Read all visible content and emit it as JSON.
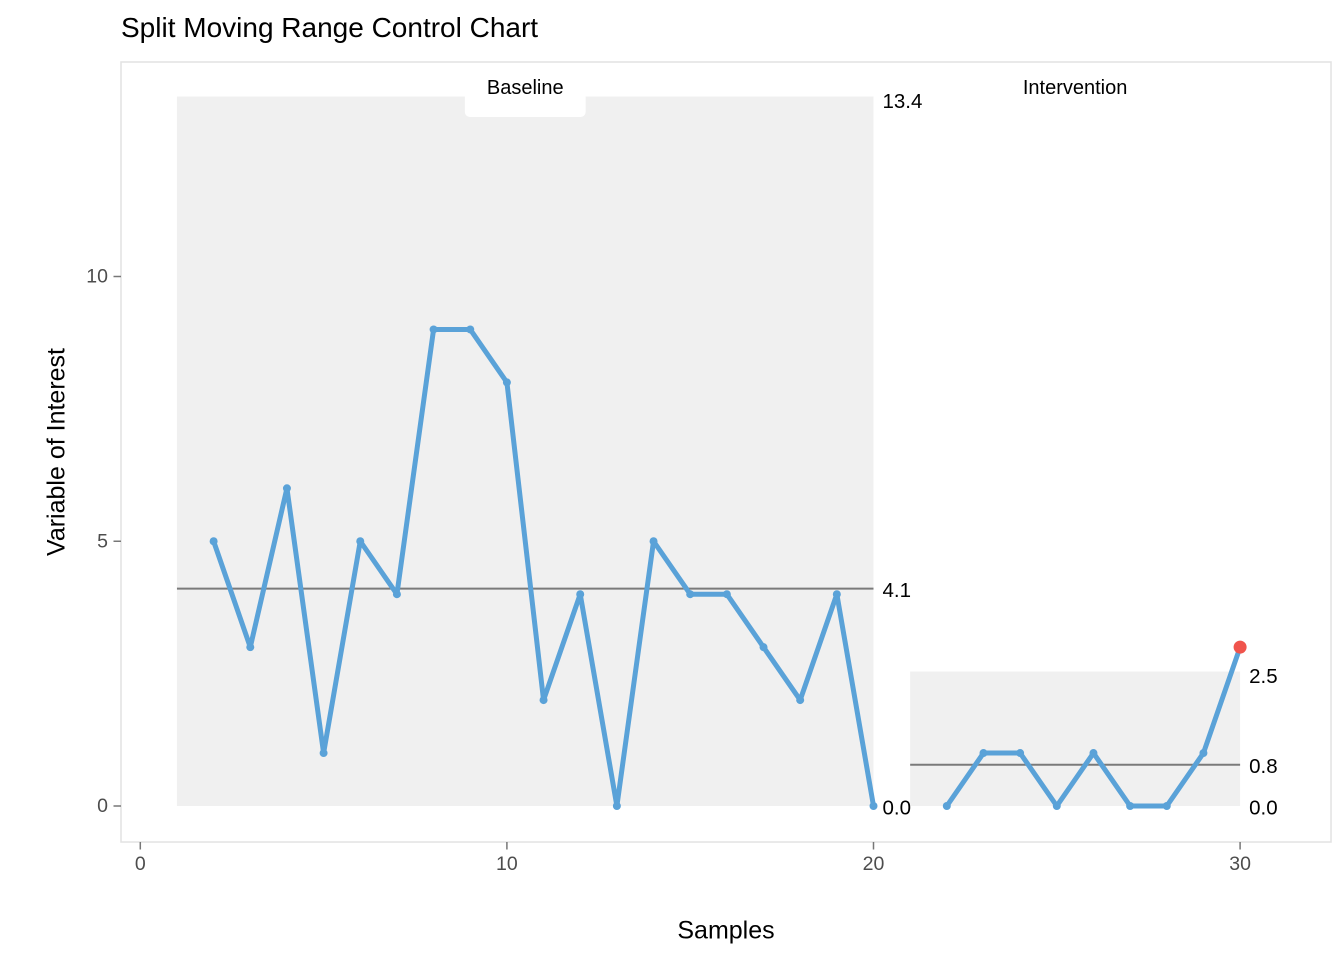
{
  "chart_data": {
    "type": "line",
    "title": "Split Moving Range Control Chart",
    "xlabel": "Samples",
    "ylabel": "Variable of Interest",
    "x_tick_values": [
      0,
      10,
      20,
      30
    ],
    "y_tick_values": [
      0,
      5,
      10
    ],
    "xlim": [
      -0.53,
      32.5
    ],
    "ylim": [
      -0.68,
      14.05
    ],
    "grid": false,
    "legend": "none",
    "phases": [
      {
        "name": "Baseline",
        "band": {
          "x0": 1,
          "x1": 20,
          "y0": 0,
          "y1": 13.4
        },
        "center_line": 4.105,
        "x": [
          2,
          3,
          4,
          5,
          6,
          7,
          8,
          9,
          10,
          11,
          12,
          13,
          14,
          15,
          16,
          17,
          18,
          19,
          20
        ],
        "y": [
          5,
          3,
          6,
          1,
          5,
          4,
          9,
          9,
          8,
          2,
          4,
          0,
          5,
          4,
          4,
          3,
          2,
          4,
          0
        ],
        "annotations": [
          {
            "text": "13.4",
            "value": 13.4
          },
          {
            "text": "4.1",
            "value": 4.105
          },
          {
            "text": "0.0",
            "value": 0
          }
        ],
        "signal_points": []
      },
      {
        "name": "Intervention",
        "band": {
          "x0": 21,
          "x1": 30,
          "y0": 0,
          "y1": 2.54
        },
        "center_line": 0.78,
        "x": [
          22,
          23,
          24,
          25,
          26,
          27,
          28,
          29,
          30
        ],
        "y": [
          0,
          1,
          1,
          0,
          1,
          0,
          0,
          1,
          3
        ],
        "annotations": [
          {
            "text": "2.5",
            "value": 2.54
          },
          {
            "text": "0.8",
            "value": 0.78
          },
          {
            "text": "0.0",
            "value": 0
          }
        ],
        "signal_points": [
          {
            "x": 30,
            "y": 3
          }
        ]
      }
    ],
    "colors": {
      "line": "#5AA2D8",
      "point": "#5AA2D8",
      "signal_point": "#F0544C",
      "band_fill": "#F0F0F0",
      "center_line": "#7A7A7A",
      "phase_label_bg": "#FFFFFF",
      "title_text": "#000000",
      "annotation_text": "#000000",
      "axis_tick_text": "#4D4D4D",
      "axis_tick_mark": "#777777",
      "panel_border": "#E2E2E2"
    }
  }
}
